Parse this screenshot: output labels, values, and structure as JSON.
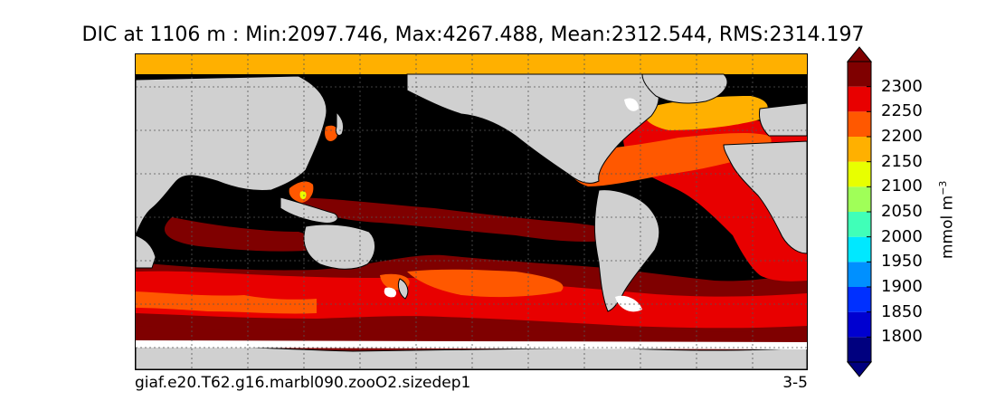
{
  "title": "DIC at 1106 m : Min:2097.746, Max:4267.488, Mean:2312.544, RMS:2314.197",
  "caption": {
    "left": "giaf.e20.T62.g16.marbl090.zooO2.sizedep1",
    "right": "3-5"
  },
  "colorbar": {
    "units_text": "mmol m",
    "units_exp": "−3",
    "levels": [
      1800,
      1850,
      1900,
      1950,
      2000,
      2050,
      2100,
      2150,
      2200,
      2250,
      2300
    ],
    "tick_labels": [
      "1800",
      "1850",
      "1900",
      "1950",
      "2000",
      "2050",
      "2100",
      "2150",
      "2200",
      "2250",
      "2300"
    ],
    "colors": [
      "#00007f",
      "#0000d0",
      "#0030ff",
      "#0090ff",
      "#00e8ff",
      "#40ffb8",
      "#a0ff58",
      "#e8ff00",
      "#ffb000",
      "#ff5800",
      "#e80000",
      "#7f0000"
    ],
    "extend": "both"
  },
  "map": {
    "land_color": "#d0d0d0",
    "no_data_color": "#ffffff",
    "grid": true
  }
}
